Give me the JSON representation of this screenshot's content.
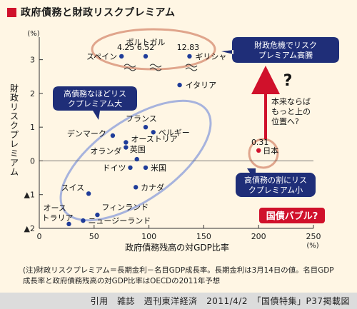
{
  "title": "政府債務と財政リスクプレミアム",
  "footnote": "(注)財政リスクプレミアム＝長期金利－名目GDP成長率。長期金利は3月14日の値。名目GDP成長率と政府債務残高の対GDP比率はOECDの2011年予想",
  "caption": "引用　雑誌　週刊東洋経済　2011/4/2　「国債特集」P37掲載図",
  "colors": {
    "background": "#fff6e4",
    "point": "#1f3c99",
    "japan_point": "#d0112b",
    "accent_red": "#d0112b",
    "ellipse_blue": "#a7b3dd",
    "ellipse_orange": "#e0a58c",
    "callout_fill": "#1f2e78",
    "axis": "#333333"
  },
  "chart_data": {
    "type": "scatter",
    "title": "政府債務と財政リスクプレミアム",
    "xlabel": "政府債務残高の対GDP比率",
    "ylabel": "財政リスクプレミアム",
    "x_unit": "(%)",
    "y_unit": "(%)",
    "xlim": [
      0,
      250
    ],
    "ylim": [
      -2,
      3.5
    ],
    "x_ticks": [
      0,
      50,
      100,
      150,
      200,
      250
    ],
    "x_tick_labels": [
      "0",
      "50",
      "100",
      "150",
      "200",
      "250"
    ],
    "y_ticks": [
      -2,
      -1,
      0,
      1,
      2,
      3
    ],
    "y_tick_labels": [
      "▲2",
      "▲1",
      "0",
      "1",
      "2",
      "3"
    ],
    "grid": false,
    "points": [
      {
        "label": "スペイン",
        "x": 75,
        "y": 3.1,
        "value_label": "4.25"
      },
      {
        "label": "ポルトガル",
        "x": 97,
        "y": 3.1,
        "value_label": "6.52"
      },
      {
        "label": "ギリシャ",
        "x": 137,
        "y": 3.1,
        "value_label": "12.83"
      },
      {
        "label": "イタリア",
        "x": 128,
        "y": 2.25
      },
      {
        "label": "フランス",
        "x": 97,
        "y": 1.0
      },
      {
        "label": "ベルギー",
        "x": 104,
        "y": 0.85
      },
      {
        "label": "デンマーク",
        "x": 67,
        "y": 0.75
      },
      {
        "label": "オーストリア",
        "x": 79,
        "y": 0.55
      },
      {
        "label": "オランダ",
        "x": 79,
        "y": 0.4
      },
      {
        "label": "英国",
        "x": 89,
        "y": 0.05
      },
      {
        "label": "ドイツ",
        "x": 83,
        "y": -0.2
      },
      {
        "label": "米国",
        "x": 97,
        "y": -0.2
      },
      {
        "label": "カナダ",
        "x": 88,
        "y": -0.78
      },
      {
        "label": "スイス",
        "x": 45,
        "y": -0.97
      },
      {
        "label": "フィンランド",
        "x": 53,
        "y": -1.6
      },
      {
        "label": "オーストラリア",
        "x": 27,
        "y": -1.87
      },
      {
        "label": "ニュージーランド",
        "x": 40,
        "y": -1.77
      },
      {
        "label": "日本",
        "x": 200,
        "y": 0.31,
        "value_label": "0.31",
        "highlight": true
      }
    ],
    "annotations": {
      "crisis_callout": [
        "財政危機でリスク",
        "プレミアム高騰"
      ],
      "high_debt_callout": [
        "高債務なほどリス",
        "クプレミアム大"
      ],
      "japan_callout": [
        "高債務の割にリス",
        "クプレミアム小"
      ],
      "question_text": [
        "本来ならば",
        "もっと上の",
        "位置へ?"
      ],
      "question_mark": "?",
      "bubble_label": "国債バブル?"
    }
  }
}
